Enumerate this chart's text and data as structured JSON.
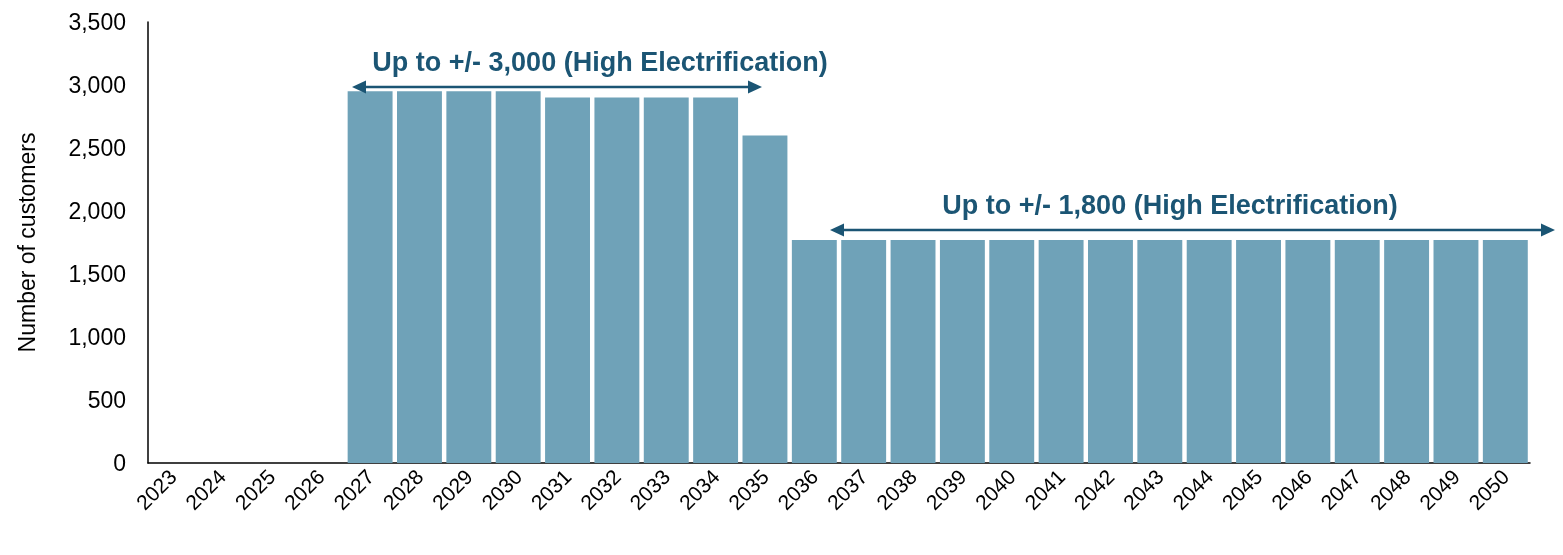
{
  "chart_data": {
    "type": "bar",
    "ylabel": "Number of customers",
    "categories": [
      "2023",
      "2024",
      "2025",
      "2026",
      "2027",
      "2028",
      "2029",
      "2030",
      "2031",
      "2032",
      "2033",
      "2034",
      "2035",
      "2036",
      "2037",
      "2038",
      "2039",
      "2040",
      "2041",
      "2042",
      "2043",
      "2044",
      "2045",
      "2046",
      "2047",
      "2048",
      "2049",
      "2050"
    ],
    "values": [
      0,
      0,
      0,
      0,
      2950,
      2950,
      2950,
      2950,
      2900,
      2900,
      2900,
      2900,
      2600,
      1770,
      1770,
      1770,
      1770,
      1770,
      1770,
      1770,
      1770,
      1770,
      1770,
      1770,
      1770,
      1770,
      1770,
      1770
    ],
    "color": "#6fa2b8",
    "ylim": [
      0,
      3500
    ],
    "yticks": [
      0,
      500,
      {
        "value": 1000,
        "label": "1,000"
      },
      {
        "value": 1500,
        "label": "1,500"
      },
      {
        "value": 2000,
        "label": "2,000"
      },
      {
        "value": 2500,
        "label": "2,500"
      },
      {
        "value": 3000,
        "label": "3,000"
      },
      {
        "value": 3500,
        "label": "3,500"
      }
    ],
    "grid": false,
    "annotations": [
      "Up to +/- 3,000 (High Electrification)",
      "Up to +/- 1,800 (High Electrification)"
    ]
  }
}
